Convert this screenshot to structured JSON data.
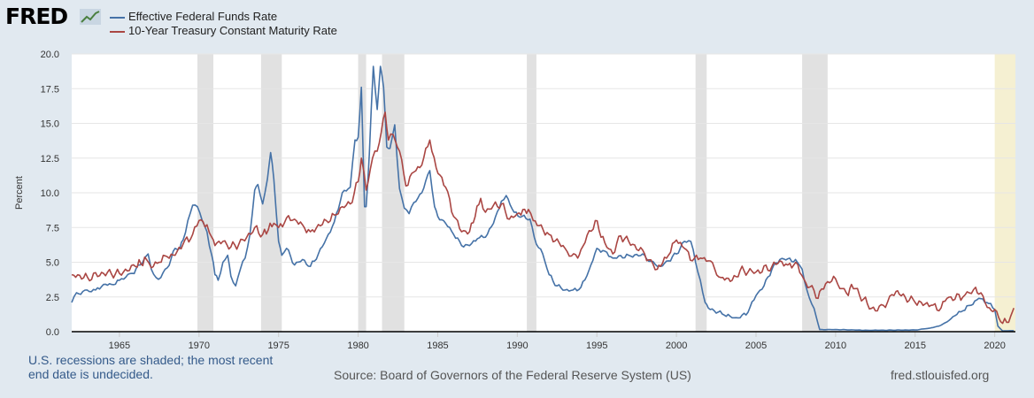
{
  "logo": {
    "text": "FRED"
  },
  "footer": {
    "note": "U.S. recessions are shaded; the most recent end date is undecided.",
    "source": "Source: Board of Governors of the Federal Reserve System (US)",
    "url": "fred.stlouisfed.org"
  },
  "colors": {
    "ffr": "#4572a7",
    "gs10": "#aa4643",
    "recession": "#e1e1e1",
    "recent_recession": "#f5f0d2"
  },
  "chart_data": {
    "type": "line",
    "title": "",
    "xlabel": "",
    "ylabel": "Percent",
    "xlim": [
      1962.0,
      2021.3
    ],
    "ylim": [
      0,
      20
    ],
    "y_ticks": [
      "0.0",
      "2.5",
      "5.0",
      "7.5",
      "10.0",
      "12.5",
      "15.0",
      "17.5",
      "20.0"
    ],
    "x_ticks": [
      "1965",
      "1970",
      "1975",
      "1980",
      "1985",
      "1990",
      "1995",
      "2000",
      "2005",
      "2010",
      "2015",
      "2020"
    ],
    "recessions": [
      {
        "start": 1969.9,
        "end": 1970.9
      },
      {
        "start": 1973.9,
        "end": 1975.2
      },
      {
        "start": 1980.0,
        "end": 1980.5
      },
      {
        "start": 1981.5,
        "end": 1982.9
      },
      {
        "start": 1990.6,
        "end": 1991.2
      },
      {
        "start": 2001.2,
        "end": 2001.9
      },
      {
        "start": 2007.9,
        "end": 2009.5
      },
      {
        "start": 2020.0,
        "end": 2021.3,
        "undecided": true
      }
    ],
    "series": [
      {
        "name": "Effective Federal Funds Rate",
        "color": "#4572a7",
        "x": [
          1962.0,
          1962.3,
          1962.7,
          1963.5,
          1964.0,
          1964.5,
          1965.0,
          1965.8,
          1966.3,
          1966.8,
          1967.0,
          1967.3,
          1967.6,
          1968.0,
          1968.5,
          1968.8,
          1969.0,
          1969.3,
          1969.6,
          1969.9,
          1970.2,
          1970.5,
          1970.8,
          1971.0,
          1971.2,
          1971.5,
          1971.8,
          1972.0,
          1972.3,
          1972.6,
          1972.9,
          1973.2,
          1973.5,
          1973.7,
          1974.0,
          1974.3,
          1974.5,
          1974.7,
          1975.0,
          1975.2,
          1975.5,
          1976.0,
          1976.5,
          1977.0,
          1977.5,
          1978.0,
          1978.5,
          1979.0,
          1979.5,
          1979.8,
          1980.0,
          1980.2,
          1980.4,
          1980.5,
          1980.7,
          1980.95,
          1981.2,
          1981.4,
          1981.6,
          1981.8,
          1982.0,
          1982.3,
          1982.6,
          1982.9,
          1983.2,
          1983.5,
          1984.0,
          1984.5,
          1984.8,
          1985.0,
          1985.5,
          1986.0,
          1986.5,
          1987.0,
          1987.5,
          1988.0,
          1988.5,
          1989.0,
          1989.3,
          1989.8,
          1990.3,
          1990.8,
          1991.2,
          1991.6,
          1992.0,
          1992.5,
          1993.0,
          1993.5,
          1994.0,
          1994.5,
          1995.0,
          1995.5,
          1996.0,
          1997.0,
          1998.0,
          1998.8,
          1999.0,
          1999.5,
          2000.0,
          2000.5,
          2000.9,
          2001.2,
          2001.5,
          2001.8,
          2002.0,
          2003.0,
          2003.5,
          2004.0,
          2004.5,
          2005.0,
          2005.5,
          2006.0,
          2006.5,
          2007.0,
          2007.6,
          2007.9,
          2008.2,
          2008.5,
          2008.8,
          2009.0,
          2010.0,
          2012.0,
          2015.0,
          2015.9,
          2016.5,
          2017.0,
          2017.5,
          2018.0,
          2018.5,
          2019.0,
          2019.5,
          2020.0,
          2020.2,
          2020.5,
          2021.2
        ],
        "values": [
          2.1,
          2.8,
          2.9,
          3.0,
          3.4,
          3.4,
          3.7,
          4.2,
          4.8,
          5.6,
          4.5,
          3.9,
          3.9,
          4.6,
          6.0,
          6.0,
          6.6,
          8.0,
          9.1,
          9.0,
          8.0,
          7.2,
          5.5,
          4.1,
          3.7,
          5.0,
          5.5,
          4.0,
          3.3,
          4.5,
          5.3,
          7.0,
          10.2,
          10.6,
          9.2,
          11.0,
          12.9,
          11.0,
          6.5,
          5.5,
          6.0,
          4.8,
          5.2,
          4.7,
          5.6,
          6.7,
          7.9,
          10.0,
          10.4,
          13.8,
          14.0,
          17.6,
          9.0,
          9.0,
          12.8,
          19.1,
          16.0,
          19.1,
          17.6,
          13.3,
          13.2,
          14.9,
          10.3,
          8.9,
          8.5,
          9.3,
          10.0,
          11.6,
          9.0,
          8.3,
          7.8,
          7.0,
          6.2,
          6.2,
          6.7,
          6.8,
          7.8,
          9.4,
          9.8,
          8.6,
          8.3,
          8.1,
          6.3,
          5.6,
          4.1,
          3.3,
          3.0,
          3.0,
          3.2,
          4.4,
          6.0,
          5.8,
          5.3,
          5.5,
          5.5,
          4.7,
          4.7,
          5.1,
          5.6,
          6.5,
          6.5,
          5.0,
          3.7,
          2.1,
          1.7,
          1.2,
          1.0,
          1.0,
          1.4,
          2.6,
          3.3,
          4.5,
          5.2,
          5.25,
          5.0,
          4.5,
          3.0,
          2.0,
          1.0,
          0.15,
          0.15,
          0.1,
          0.12,
          0.25,
          0.4,
          0.7,
          1.15,
          1.5,
          1.9,
          2.4,
          2.1,
          1.6,
          0.4,
          0.05,
          0.07
        ]
      },
      {
        "name": "10-Year Treasury Constant Maturity Rate",
        "color": "#aa4643",
        "x": [
          1962.0,
          1963.0,
          1964.0,
          1965.0,
          1966.0,
          1966.7,
          1967.0,
          1967.5,
          1968.0,
          1968.5,
          1969.0,
          1969.6,
          1970.0,
          1970.5,
          1970.8,
          1971.0,
          1971.5,
          1972.0,
          1972.5,
          1973.0,
          1973.5,
          1974.0,
          1974.7,
          1975.0,
          1975.5,
          1976.0,
          1976.5,
          1977.0,
          1978.0,
          1978.5,
          1979.0,
          1979.5,
          1980.0,
          1980.2,
          1980.5,
          1980.9,
          1981.2,
          1981.7,
          1981.9,
          1982.2,
          1982.6,
          1983.0,
          1983.5,
          1984.0,
          1984.5,
          1984.9,
          1985.5,
          1986.0,
          1986.5,
          1987.0,
          1987.7,
          1988.0,
          1988.5,
          1989.0,
          1989.5,
          1990.0,
          1990.7,
          1991.0,
          1992.0,
          1993.0,
          1993.8,
          1994.0,
          1994.9,
          1995.5,
          1996.0,
          1996.5,
          1997.0,
          1998.0,
          1998.8,
          1999.0,
          1999.5,
          2000.0,
          2000.5,
          2001.0,
          2001.5,
          2002.0,
          2002.8,
          2003.5,
          2004.0,
          2005.0,
          2006.0,
          2006.5,
          2007.0,
          2007.5,
          2008.0,
          2008.9,
          2009.0,
          2009.5,
          2010.0,
          2010.8,
          2011.0,
          2012.0,
          2012.5,
          2013.0,
          2013.8,
          2014.0,
          2015.0,
          2016.0,
          2016.5,
          2017.0,
          2018.0,
          2018.8,
          2019.0,
          2019.8,
          2020.0,
          2020.5,
          2021.0,
          2021.2
        ],
        "values": [
          4.1,
          3.9,
          4.2,
          4.2,
          4.7,
          5.2,
          4.6,
          5.0,
          5.4,
          5.5,
          6.3,
          7.0,
          8.0,
          7.7,
          6.8,
          6.2,
          6.5,
          6.1,
          6.3,
          6.8,
          7.5,
          7.0,
          7.8,
          7.5,
          8.2,
          8.1,
          7.7,
          7.2,
          8.0,
          8.4,
          9.0,
          9.2,
          10.8,
          12.5,
          10.2,
          12.5,
          13.0,
          15.8,
          13.8,
          14.2,
          13.0,
          10.5,
          11.5,
          12.0,
          13.8,
          11.8,
          10.4,
          8.3,
          7.2,
          7.2,
          9.6,
          8.6,
          9.1,
          9.2,
          8.1,
          8.5,
          8.8,
          8.0,
          7.0,
          6.0,
          5.3,
          5.9,
          8.0,
          6.4,
          5.6,
          6.9,
          6.5,
          5.6,
          4.5,
          4.7,
          5.5,
          6.6,
          6.0,
          5.1,
          5.3,
          5.1,
          3.9,
          3.7,
          4.4,
          4.3,
          4.7,
          5.1,
          4.8,
          5.0,
          3.8,
          2.4,
          2.9,
          3.6,
          3.8,
          2.6,
          3.4,
          2.0,
          1.5,
          1.9,
          2.9,
          2.7,
          2.1,
          1.9,
          1.5,
          2.4,
          2.5,
          3.2,
          2.7,
          1.5,
          1.6,
          0.6,
          1.1,
          1.7
        ]
      }
    ]
  }
}
